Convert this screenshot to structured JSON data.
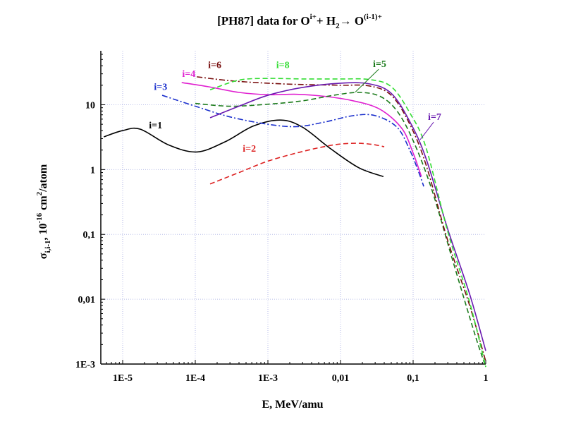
{
  "chart_data": {
    "type": "line",
    "title": "[PH87] data for  O^{i+} + H_2 → O^{(i-1)+}",
    "title_parts": {
      "prefix": "[PH87] data for",
      "ion": "O",
      "ion_sup": "i+",
      "plus": "+ H",
      "h_sub": "2",
      "arrow": "→",
      "product": "O",
      "product_sup": "(i-1)+"
    },
    "xlabel": "E, MeV/amu",
    "ylabel": "σ_{i,i-1}, 10^{-16} cm^2/atom",
    "ylabel_parts": {
      "sigma": "σ",
      "sub": "i,i-1",
      "mid": ", 10",
      "exp": "-16",
      "unit": " cm",
      "unit_sup": "2",
      "tail": "/atom"
    },
    "xscale": "log",
    "yscale": "log",
    "xlim": [
      5e-06,
      1.0
    ],
    "ylim": [
      0.001,
      68
    ],
    "grid": true,
    "x_ticks": [
      {
        "value": 1e-05,
        "label": "1E-5"
      },
      {
        "value": 0.0001,
        "label": "1E-4"
      },
      {
        "value": 0.001,
        "label": "1E-3"
      },
      {
        "value": 0.01,
        "label": "0,01"
      },
      {
        "value": 0.1,
        "label": "0,1"
      },
      {
        "value": 1,
        "label": "1"
      }
    ],
    "y_ticks": [
      {
        "value": 0.001,
        "label": "1E-3"
      },
      {
        "value": 0.01,
        "label": "0,01"
      },
      {
        "value": 0.1,
        "label": "0,1"
      },
      {
        "value": 1,
        "label": "1"
      },
      {
        "value": 10,
        "label": "10"
      }
    ],
    "series": [
      {
        "name": "i=1",
        "color": "#000000",
        "dash": "solid",
        "x": [
          5.5e-06,
          1e-05,
          1.75e-05,
          4.3e-05,
          0.000105,
          0.00026,
          0.00063,
          0.0015,
          0.003,
          0.0073,
          0.0178,
          0.039
        ],
        "y": [
          3.2,
          4.0,
          4.2,
          2.4,
          1.87,
          2.7,
          4.7,
          5.8,
          4.5,
          2.1,
          1.07,
          0.78
        ],
        "label_at": [
          2.3e-05,
          4.3
        ]
      },
      {
        "name": "i=2",
        "color": "#dd2222",
        "dash": "dashed",
        "x": [
          0.00016,
          0.0004,
          0.001,
          0.003,
          0.008,
          0.016,
          0.027,
          0.04
        ],
        "y": [
          0.6,
          0.9,
          1.35,
          1.9,
          2.4,
          2.55,
          2.45,
          2.25
        ],
        "label_at": [
          0.00045,
          1.9
        ]
      },
      {
        "name": "i=3",
        "color": "#1a2fcc",
        "dash": "dashdot",
        "x": [
          3.5e-05,
          0.0001,
          0.0003,
          0.001,
          0.0025,
          0.006,
          0.015,
          0.03,
          0.06,
          0.09,
          0.12,
          0.14
        ],
        "y": [
          14,
          9.5,
          6.5,
          5.0,
          4.6,
          5.4,
          6.8,
          6.8,
          4.5,
          2.0,
          0.9,
          0.55
        ],
        "label_at": [
          2.7e-05,
          17
        ]
      },
      {
        "name": "i=4",
        "color": "#e020d0",
        "dash": "solid",
        "x": [
          6.5e-05,
          0.00015,
          0.0004,
          0.001,
          0.0025,
          0.006,
          0.015,
          0.035,
          0.07,
          0.1,
          0.13
        ],
        "y": [
          22,
          19,
          15.5,
          14.3,
          14.5,
          13.5,
          11.5,
          8.5,
          4.3,
          1.8,
          0.78
        ],
        "label_at": [
          6.6e-05,
          27
        ]
      },
      {
        "name": "i=5",
        "color": "#1a7a1a",
        "dash": "dashed",
        "x": [
          0.0001,
          0.0003,
          0.001,
          0.003,
          0.008,
          0.018,
          0.035,
          0.06,
          0.1,
          0.18,
          0.35,
          0.7,
          1.0
        ],
        "y": [
          10.5,
          9.5,
          10.2,
          11.5,
          14,
          15.5,
          13.5,
          8,
          2.8,
          0.5,
          0.04,
          0.003,
          0.0009
        ],
        "label_at": [
          0.028,
          38
        ],
        "arrow_to": [
          0.016,
          15.7
        ]
      },
      {
        "name": "i=6",
        "color": "#7a1010",
        "dash": "dashdot",
        "x": [
          0.000105,
          0.0003,
          0.001,
          0.003,
          0.01,
          0.025,
          0.05,
          0.09,
          0.15,
          0.3,
          0.6,
          1.0
        ],
        "y": [
          27,
          23.5,
          21.5,
          20.5,
          20,
          19.5,
          14,
          5,
          1.2,
          0.08,
          0.008,
          0.0011
        ],
        "label_at": [
          0.00015,
          37
        ]
      },
      {
        "name": "i=7",
        "color": "#6a1ab0",
        "dash": "solid",
        "x": [
          0.00016,
          0.0004,
          0.001,
          0.003,
          0.01,
          0.025,
          0.05,
          0.09,
          0.15,
          0.3,
          0.6,
          1.0
        ],
        "y": [
          6.3,
          9.5,
          14,
          18.5,
          21.5,
          21,
          15,
          5.5,
          1.5,
          0.12,
          0.012,
          0.0016
        ],
        "label_at": [
          0.16,
          5.8
        ],
        "arrow_to": [
          0.125,
          2.9
        ]
      },
      {
        "name": "i=8",
        "color": "#33dd33",
        "dash": "dashed",
        "x": [
          0.00016,
          0.0004,
          0.001,
          0.003,
          0.01,
          0.025,
          0.05,
          0.09,
          0.15,
          0.3,
          0.6,
          1.0
        ],
        "y": [
          17,
          24,
          25.5,
          25,
          25,
          24.5,
          19,
          7.5,
          2.2,
          0.11,
          0.009,
          0.0009
        ],
        "label_at": [
          0.0013,
          37
        ]
      }
    ]
  }
}
